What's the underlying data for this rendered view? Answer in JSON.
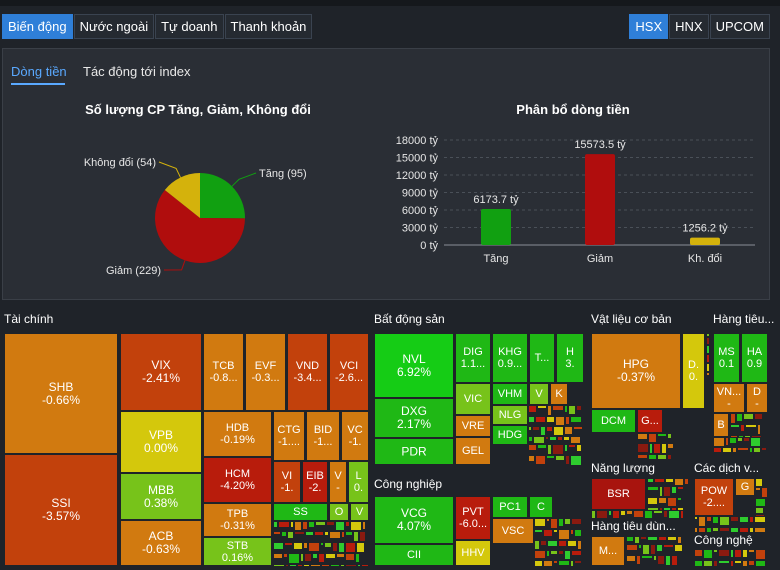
{
  "tabs": [
    "Biến động",
    "Nước ngoài",
    "Tự doanh",
    "Thanh khoản"
  ],
  "exchanges": [
    "HSX",
    "HNX",
    "UPCOM"
  ],
  "subtabs": [
    "Dòng tiền",
    "Tác động tới index"
  ],
  "pie": {
    "title": "Số lượng CP Tăng, Giảm, Không đổi",
    "labels": {
      "tang": "Tăng (95)",
      "giam": "Giảm (229)",
      "khongdoi": "Không đổi (54)"
    },
    "colors": {
      "tang": "#11a011",
      "giam": "#b00d0d",
      "khongdoi": "#d4b20c"
    },
    "chart_data": {
      "type": "pie",
      "categories": [
        "Tăng",
        "Giảm",
        "Không đổi"
      ],
      "values": [
        95,
        229,
        54
      ]
    }
  },
  "bar": {
    "title": "Phân bổ dòng tiền",
    "ticks": [
      "18000 tỷ",
      "15000 tỷ",
      "12000 tỷ",
      "9000 tỷ",
      "6000 tỷ",
      "3000 tỷ",
      "0 tỷ"
    ],
    "value_labels": [
      "6173.7 tỷ",
      "15573.5 tỷ",
      "1256.2 tỷ"
    ],
    "chart_data": {
      "type": "bar",
      "categories": [
        "Tăng",
        "Giảm",
        "Kh. đổi"
      ],
      "values": [
        6173.7,
        15573.5,
        1256.2
      ],
      "ylim": [
        0,
        18000
      ],
      "colors": [
        "#11a011",
        "#b00d0d",
        "#d4b20c"
      ]
    }
  },
  "treemap": {
    "sectors": {
      "taichinh": "Tài chính",
      "batdongsan": "Bất động sản",
      "vatlieu": "Vật liệu cơ bản",
      "hangtieudung_short": "Hàng tiêu...",
      "congnghiep": "Công nghiệp",
      "nangluong": "Năng lượng",
      "cacdichvu": "Các dịch v...",
      "hangtieudung": "Hàng tiêu dùn...",
      "congnghe": "Công nghệ"
    },
    "stocks": {
      "SHB": [
        "SHB",
        "-0.66%"
      ],
      "SSI": [
        "SSI",
        "-3.57%"
      ],
      "VIX": [
        "VIX",
        "-2.41%"
      ],
      "VPB": [
        "VPB",
        "0.00%"
      ],
      "MBB": [
        "MBB",
        "0.38%"
      ],
      "ACB": [
        "ACB",
        "-0.63%"
      ],
      "TCB": [
        "TCB",
        "-0.8..."
      ],
      "EVF": [
        "EVF",
        "-0.3..."
      ],
      "VND": [
        "VND",
        "-3.4..."
      ],
      "VCI": [
        "VCI",
        "-2.6..."
      ],
      "HDB": [
        "HDB",
        "-0.19%"
      ],
      "HCM": [
        "HCM",
        "-4.20%"
      ],
      "TPB": [
        "TPB",
        "-0.31%"
      ],
      "STB": [
        "STB",
        "0.16%"
      ],
      "CTG": [
        "CTG",
        "-1...."
      ],
      "BID": [
        "BID",
        "-1..."
      ],
      "VC": [
        "VC",
        "-1."
      ],
      "VI": [
        "VI",
        "-1."
      ],
      "EIB": [
        "EIB",
        "-2."
      ],
      "V": [
        "V",
        "-"
      ],
      "L": [
        "L",
        "0."
      ],
      "SS": [
        "SS",
        ""
      ],
      "O": [
        "O",
        ""
      ],
      "V2": [
        "V",
        ""
      ],
      "NVL": [
        "NVL",
        "6.92%"
      ],
      "DXG": [
        "DXG",
        "2.17%"
      ],
      "PDR": [
        "PDR",
        ""
      ],
      "DIG": [
        "DIG",
        "1.1..."
      ],
      "KHG": [
        "KHG",
        "0.9..."
      ],
      "T": [
        "T...",
        ""
      ],
      "H": [
        "H",
        "3."
      ],
      "VIC": [
        "VIC",
        ""
      ],
      "VHM": [
        "VHM",
        ""
      ],
      "VV": [
        "V",
        ""
      ],
      "K": [
        "K",
        ""
      ],
      "VRE": [
        "VRE",
        ""
      ],
      "NLG": [
        "NLG",
        ""
      ],
      "HDG": [
        "HDG",
        ""
      ],
      "GEL": [
        "GEL",
        ""
      ],
      "VCG": [
        "VCG",
        "4.07%"
      ],
      "CII": [
        "CII",
        ""
      ],
      "PVT": [
        "PVT",
        "-6.0..."
      ],
      "HHV": [
        "HHV",
        ""
      ],
      "PC1": [
        "PC1",
        ""
      ],
      "C": [
        "C",
        ""
      ],
      "VSC": [
        "VSC",
        ""
      ],
      "HPG": [
        "HPG",
        "-0.37%"
      ],
      "D": [
        "D.",
        "0."
      ],
      "DCM": [
        "DCM",
        ""
      ],
      "G": [
        "G...",
        ""
      ],
      "MS": [
        "MS",
        "0.1"
      ],
      "HA": [
        "HA",
        "0.9"
      ],
      "VN": [
        "VN...",
        "-"
      ],
      "D2": [
        "D",
        "-"
      ],
      "B": [
        "B",
        ""
      ],
      "BSR": [
        "BSR",
        ""
      ],
      "POW": [
        "POW",
        "-2...."
      ],
      "G2": [
        "G",
        ""
      ],
      "M": [
        "M...",
        ""
      ]
    }
  }
}
